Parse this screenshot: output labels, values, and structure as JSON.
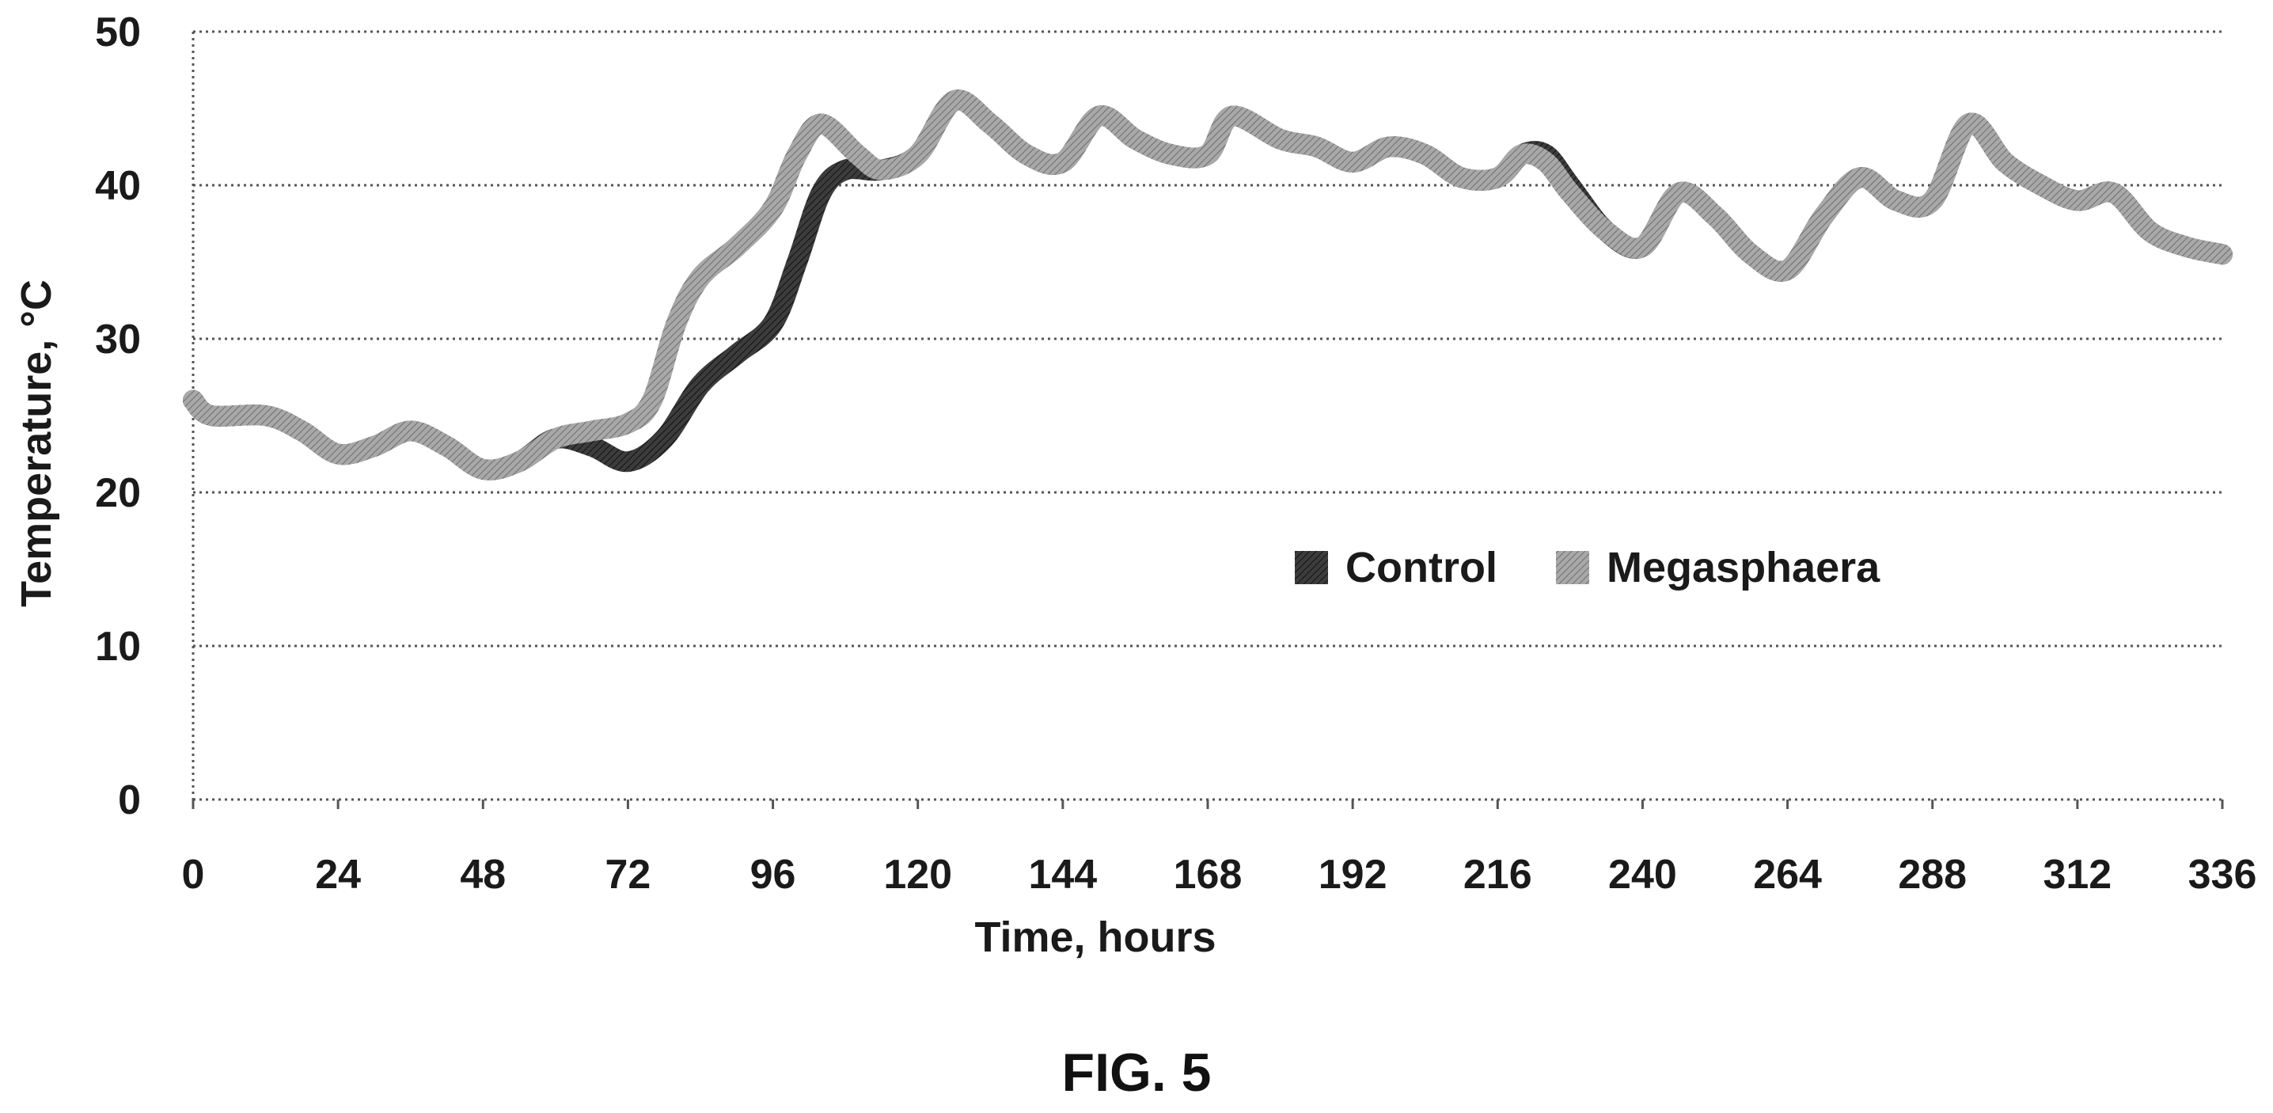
{
  "figure": {
    "caption": "FIG. 5"
  },
  "chart_data": {
    "type": "line",
    "xlabel": "Time, hours",
    "ylabel": "Temperature, °C",
    "xlim": [
      0,
      336
    ],
    "ylim": [
      0,
      50
    ],
    "x_ticks": [
      0,
      24,
      48,
      72,
      96,
      120,
      144,
      168,
      192,
      216,
      240,
      264,
      288,
      312,
      336
    ],
    "y_ticks": [
      0,
      10,
      20,
      30,
      40,
      50
    ],
    "grid": "horizontal dotted",
    "legend": "center-right",
    "series": [
      {
        "name": "Control",
        "color": "#4a4a4a",
        "points": [
          [
            0,
            26
          ],
          [
            3,
            25
          ],
          [
            12,
            25
          ],
          [
            18,
            24
          ],
          [
            24,
            22.5
          ],
          [
            30,
            23
          ],
          [
            36,
            24
          ],
          [
            42,
            23
          ],
          [
            48,
            21.5
          ],
          [
            54,
            22
          ],
          [
            60,
            23.5
          ],
          [
            66,
            23
          ],
          [
            72,
            22
          ],
          [
            78,
            23.5
          ],
          [
            84,
            27
          ],
          [
            90,
            29
          ],
          [
            96,
            31
          ],
          [
            100,
            35
          ],
          [
            104,
            39.5
          ],
          [
            108,
            41
          ],
          [
            114,
            41
          ],
          [
            120,
            42
          ],
          [
            126,
            45.5
          ],
          [
            132,
            44
          ],
          [
            138,
            42
          ],
          [
            144,
            41.5
          ],
          [
            150,
            44.5
          ],
          [
            156,
            43
          ],
          [
            162,
            42
          ],
          [
            168,
            42
          ],
          [
            172,
            44.5
          ],
          [
            180,
            43
          ],
          [
            186,
            42.5
          ],
          [
            192,
            41.5
          ],
          [
            198,
            42.5
          ],
          [
            204,
            42
          ],
          [
            210,
            40.5
          ],
          [
            216,
            40.5
          ],
          [
            220,
            42
          ],
          [
            224,
            42
          ],
          [
            228,
            40
          ],
          [
            234,
            37
          ],
          [
            240,
            36
          ],
          [
            246,
            39.5
          ],
          [
            252,
            38
          ],
          [
            258,
            35.5
          ],
          [
            264,
            34.5
          ],
          [
            270,
            38
          ],
          [
            276,
            40.5
          ],
          [
            282,
            39
          ],
          [
            288,
            39
          ],
          [
            294,
            44
          ],
          [
            300,
            41.5
          ],
          [
            306,
            40
          ],
          [
            312,
            39
          ],
          [
            318,
            39.5
          ],
          [
            324,
            37
          ],
          [
            330,
            36
          ],
          [
            336,
            35.5
          ]
        ]
      },
      {
        "name": "Megasphaera",
        "color": "#9a9a9a",
        "points": [
          [
            0,
            26
          ],
          [
            3,
            25
          ],
          [
            12,
            25
          ],
          [
            18,
            24
          ],
          [
            24,
            22.5
          ],
          [
            30,
            23
          ],
          [
            36,
            24
          ],
          [
            42,
            23
          ],
          [
            48,
            21.5
          ],
          [
            54,
            22
          ],
          [
            60,
            23.5
          ],
          [
            66,
            24
          ],
          [
            72,
            24.5
          ],
          [
            76,
            26
          ],
          [
            80,
            31
          ],
          [
            84,
            34
          ],
          [
            90,
            36
          ],
          [
            96,
            38.5
          ],
          [
            100,
            42
          ],
          [
            104,
            44
          ],
          [
            110,
            42
          ],
          [
            114,
            41
          ],
          [
            120,
            42
          ],
          [
            126,
            45.5
          ],
          [
            132,
            44
          ],
          [
            138,
            42
          ],
          [
            144,
            41.5
          ],
          [
            150,
            44.5
          ],
          [
            156,
            43
          ],
          [
            162,
            42
          ],
          [
            168,
            42
          ],
          [
            172,
            44.5
          ],
          [
            180,
            43
          ],
          [
            186,
            42.5
          ],
          [
            192,
            41.5
          ],
          [
            198,
            42.5
          ],
          [
            204,
            42
          ],
          [
            210,
            40.5
          ],
          [
            216,
            40.5
          ],
          [
            220,
            42
          ],
          [
            224,
            41.5
          ],
          [
            228,
            39.5
          ],
          [
            234,
            37
          ],
          [
            240,
            36
          ],
          [
            246,
            39.5
          ],
          [
            252,
            38
          ],
          [
            258,
            35.5
          ],
          [
            264,
            34.5
          ],
          [
            270,
            38
          ],
          [
            276,
            40.5
          ],
          [
            282,
            39
          ],
          [
            288,
            39
          ],
          [
            294,
            44
          ],
          [
            300,
            41.5
          ],
          [
            306,
            40
          ],
          [
            312,
            39
          ],
          [
            318,
            39.5
          ],
          [
            324,
            37
          ],
          [
            330,
            36
          ],
          [
            336,
            35.5
          ]
        ]
      }
    ]
  }
}
